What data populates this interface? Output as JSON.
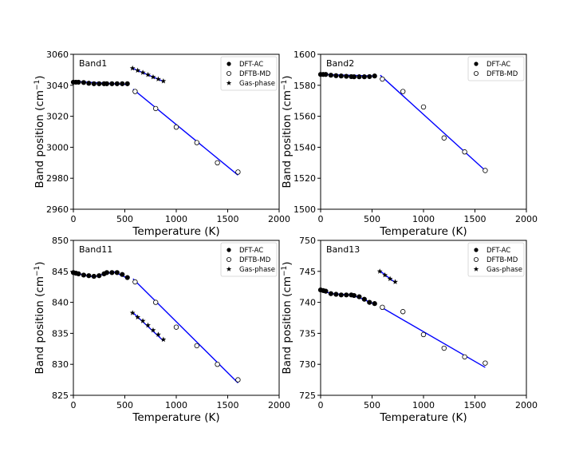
{
  "chart_data": [
    {
      "type": "scatter",
      "title": "Band1",
      "xlabel": "Temperature (K)",
      "ylabel": "Band position (cm",
      "ylabel_sup": "−1",
      "ylabel_end": ")",
      "xlim": [
        0,
        2000
      ],
      "ylim": [
        2960,
        3060
      ],
      "xticks": [
        "0",
        "500",
        "1000",
        "1500",
        "2000"
      ],
      "yticks": [
        "2960",
        "2980",
        "3000",
        "3020",
        "3040",
        "3060"
      ],
      "legend": [
        "DFT-AC",
        "DFTB-MD",
        "Gas-phase"
      ],
      "series": [
        {
          "name": "DFT-AC",
          "marker": "filled-circle",
          "x": [
            0,
            25,
            50,
            100,
            150,
            200,
            250,
            298,
            325,
            375,
            425,
            475,
            525
          ],
          "y": [
            3042,
            3042,
            3042,
            3041.8,
            3041.3,
            3041,
            3041,
            3041,
            3041,
            3041,
            3041,
            3041,
            3041
          ]
        },
        {
          "name": "DFTB-MD",
          "marker": "open-circle",
          "x": [
            600,
            800,
            1000,
            1200,
            1400,
            1600
          ],
          "y": [
            3036,
            3025,
            3013,
            3003,
            2990,
            2984
          ]
        },
        {
          "name": "Gas-phase",
          "marker": "star",
          "x": [
            575,
            625,
            675,
            725,
            775,
            825,
            875
          ],
          "y": [
            3051,
            3049.6,
            3048.2,
            3046.8,
            3045.3,
            3044,
            3042.7
          ]
        }
      ],
      "lines": [
        {
          "name": "fit-low",
          "x": [
            0,
            525
          ],
          "y": [
            3042.5,
            3040.5
          ]
        },
        {
          "name": "fit-high",
          "x": [
            580,
            1600
          ],
          "y": [
            3037.5,
            2982
          ]
        },
        {
          "name": "fit-gas",
          "x": [
            575,
            875
          ],
          "y": [
            3051,
            3042.5
          ]
        }
      ]
    },
    {
      "type": "scatter",
      "title": "Band2",
      "xlabel": "Temperature (K)",
      "ylabel": "Band position (cm",
      "ylabel_sup": "−1",
      "ylabel_end": ")",
      "xlim": [
        0,
        2000
      ],
      "ylim": [
        1500,
        1600
      ],
      "xticks": [
        "0",
        "500",
        "1000",
        "1500",
        "2000"
      ],
      "yticks": [
        "1500",
        "1520",
        "1540",
        "1560",
        "1580",
        "1600"
      ],
      "legend": [
        "DFT-AC",
        "DFTB-MD"
      ],
      "series": [
        {
          "name": "DFT-AC",
          "marker": "filled-circle",
          "x": [
            0,
            25,
            50,
            100,
            150,
            200,
            250,
            298,
            325,
            375,
            425,
            475,
            525
          ],
          "y": [
            1587,
            1587,
            1587,
            1586.5,
            1586.2,
            1586,
            1585.8,
            1585.6,
            1585.5,
            1585.5,
            1585.5,
            1585.6,
            1586
          ]
        },
        {
          "name": "DFTB-MD",
          "marker": "open-circle",
          "x": [
            600,
            800,
            1000,
            1200,
            1400,
            1600
          ],
          "y": [
            1584,
            1576,
            1566,
            1546,
            1537,
            1525
          ]
        }
      ],
      "lines": [
        {
          "name": "fit-low",
          "x": [
            0,
            525
          ],
          "y": [
            1587,
            1586
          ]
        },
        {
          "name": "fit-high",
          "x": [
            580,
            1600
          ],
          "y": [
            1586.5,
            1525
          ]
        }
      ]
    },
    {
      "type": "scatter",
      "title": "Band11",
      "xlabel": "Temperature (K)",
      "ylabel": "Band position (cm",
      "ylabel_sup": "−1",
      "ylabel_end": ")",
      "xlim": [
        0,
        2000
      ],
      "ylim": [
        825,
        850
      ],
      "xticks": [
        "0",
        "500",
        "1000",
        "1500",
        "2000"
      ],
      "yticks": [
        "825",
        "830",
        "835",
        "840",
        "845",
        "850"
      ],
      "legend": [
        "DFT-AC",
        "DFTB-MD",
        "Gas-phase"
      ],
      "series": [
        {
          "name": "DFT-AC",
          "marker": "filled-circle",
          "x": [
            0,
            25,
            50,
            100,
            150,
            200,
            250,
            298,
            325,
            375,
            425,
            475,
            525
          ],
          "y": [
            844.8,
            844.7,
            844.6,
            844.4,
            844.3,
            844.2,
            844.3,
            844.6,
            844.8,
            844.8,
            844.8,
            844.5,
            844
          ]
        },
        {
          "name": "DFTB-MD",
          "marker": "open-circle",
          "x": [
            600,
            800,
            1000,
            1200,
            1400,
            1600
          ],
          "y": [
            843.3,
            840,
            836,
            833,
            830,
            827.5
          ]
        },
        {
          "name": "Gas-phase",
          "marker": "star",
          "x": [
            575,
            625,
            675,
            725,
            775,
            825,
            875
          ],
          "y": [
            838.3,
            837.6,
            837,
            836.3,
            835.5,
            834.8,
            834
          ]
        }
      ],
      "lines": [
        {
          "name": "fit-low",
          "x": [
            0,
            100,
            200,
            300,
            400,
            525
          ],
          "y": [
            844.9,
            844.4,
            844.1,
            844.6,
            844.9,
            843.9
          ]
        },
        {
          "name": "fit-high",
          "x": [
            580,
            1600
          ],
          "y": [
            843.8,
            827
          ]
        },
        {
          "name": "fit-gas",
          "x": [
            575,
            875
          ],
          "y": [
            838.4,
            833.8
          ]
        }
      ]
    },
    {
      "type": "scatter",
      "title": "Band13",
      "xlabel": "Temperature (K)",
      "ylabel": "Band position (cm",
      "ylabel_sup": "−1",
      "ylabel_end": ")",
      "xlim": [
        0,
        2000
      ],
      "ylim": [
        725,
        750
      ],
      "xticks": [
        "0",
        "500",
        "1000",
        "1500",
        "2000"
      ],
      "yticks": [
        "725",
        "730",
        "735",
        "740",
        "745",
        "750"
      ],
      "legend": [
        "DFT-AC",
        "DFTB-MD",
        "Gas-phase"
      ],
      "series": [
        {
          "name": "DFT-AC",
          "marker": "filled-circle",
          "x": [
            0,
            25,
            50,
            100,
            150,
            200,
            250,
            298,
            325,
            375,
            425,
            475,
            525
          ],
          "y": [
            742,
            741.9,
            741.8,
            741.4,
            741.3,
            741.2,
            741.2,
            741.2,
            741.1,
            740.9,
            740.5,
            740,
            739.8
          ]
        },
        {
          "name": "DFTB-MD",
          "marker": "open-circle",
          "x": [
            600,
            800,
            1000,
            1200,
            1400,
            1600
          ],
          "y": [
            739.2,
            738.5,
            734.8,
            732.6,
            731.2,
            730.2
          ]
        },
        {
          "name": "Gas-phase",
          "marker": "star",
          "x": [
            575,
            625,
            675,
            725
          ],
          "y": [
            745,
            744.4,
            743.8,
            743.3
          ]
        }
      ],
      "lines": [
        {
          "name": "fit-low",
          "x": [
            0,
            100,
            300,
            400,
            525
          ],
          "y": [
            742,
            741.4,
            741.2,
            740.6,
            739.7
          ]
        },
        {
          "name": "fit-high",
          "x": [
            580,
            1600
          ],
          "y": [
            739.3,
            729.5
          ]
        },
        {
          "name": "fit-gas",
          "x": [
            575,
            725
          ],
          "y": [
            745.1,
            743.2
          ]
        }
      ]
    }
  ]
}
